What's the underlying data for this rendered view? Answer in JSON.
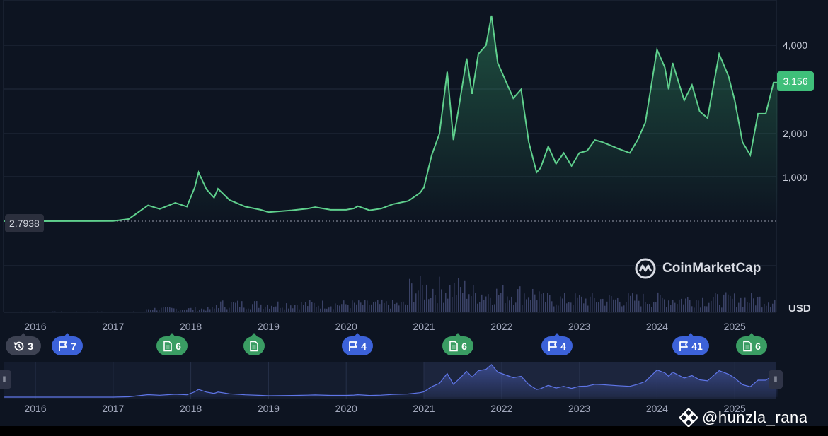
{
  "chart_data": {
    "type": "area",
    "x": [
      2015.6,
      2016.0,
      2016.5,
      2017.0,
      2017.2,
      2017.45,
      2017.6,
      2017.8,
      2017.95,
      2018.05,
      2018.1,
      2018.2,
      2018.3,
      2018.35,
      2018.5,
      2018.7,
      2018.9,
      2019.0,
      2019.3,
      2019.5,
      2019.6,
      2019.8,
      2020.0,
      2020.1,
      2020.15,
      2020.3,
      2020.45,
      2020.6,
      2020.8,
      2020.95,
      2021.0,
      2021.1,
      2021.2,
      2021.3,
      2021.38,
      2021.45,
      2021.55,
      2021.62,
      2021.7,
      2021.8,
      2021.87,
      2021.95,
      2022.05,
      2022.15,
      2022.25,
      2022.35,
      2022.45,
      2022.5,
      2022.6,
      2022.7,
      2022.8,
      2022.9,
      2023.0,
      2023.1,
      2023.2,
      2023.3,
      2023.5,
      2023.65,
      2023.75,
      2023.85,
      2024.0,
      2024.1,
      2024.15,
      2024.2,
      2024.35,
      2024.45,
      2024.55,
      2024.65,
      2024.8,
      2024.92,
      2025.0,
      2025.1,
      2025.2,
      2025.3,
      2025.4,
      2025.5,
      2025.55
    ],
    "y": [
      2.8,
      2.8,
      2.9,
      3.0,
      10,
      280,
      160,
      350,
      230,
      730,
      1100,
      690,
      480,
      700,
      420,
      230,
      140,
      95,
      130,
      170,
      210,
      140,
      140,
      175,
      250,
      130,
      170,
      320,
      400,
      600,
      730,
      1500,
      2000,
      3400,
      1850,
      2600,
      3700,
      2900,
      3800,
      4000,
      4700,
      3600,
      3200,
      2800,
      3000,
      1800,
      1100,
      1200,
      1700,
      1300,
      1550,
      1250,
      1550,
      1600,
      1850,
      1800,
      1650,
      1550,
      1850,
      2250,
      3900,
      3500,
      3000,
      3600,
      2750,
      3100,
      2500,
      2350,
      3800,
      3300,
      2750,
      1800,
      1500,
      2450,
      2450,
      3156,
      3156
    ],
    "yticks": [
      "1,000",
      "2,000",
      "4,000"
    ],
    "xticks": [
      "2016",
      "2017",
      "2018",
      "2019",
      "2020",
      "2021",
      "2022",
      "2023",
      "2024",
      "2025"
    ],
    "current_price": "3,156",
    "start_price": "2.7938",
    "currency": "USD",
    "scale": "log",
    "grid": true,
    "volume_note": "volume bars along bottom"
  },
  "brand": "CoinMarketCap",
  "usd_label": "USD",
  "events": [
    {
      "kind": "history",
      "label": "3",
      "color": "gray"
    },
    {
      "kind": "flag",
      "label": "7",
      "color": "blue"
    },
    {
      "kind": "doc",
      "label": "6",
      "color": "green"
    },
    {
      "kind": "doc",
      "label": "",
      "color": "green"
    },
    {
      "kind": "flag",
      "label": "4",
      "color": "blue"
    },
    {
      "kind": "doc",
      "label": "6",
      "color": "green"
    },
    {
      "kind": "flag",
      "label": "4",
      "color": "blue"
    },
    {
      "kind": "flag",
      "label": "41",
      "color": "blue"
    },
    {
      "kind": "doc",
      "label": "6",
      "color": "green"
    }
  ],
  "watermark": "@hunzla_rana",
  "colors": {
    "line": "#5fd08d",
    "navigator_line": "#5f76e8",
    "background": "#0d1421",
    "price_tag": "#3fbf7a"
  }
}
